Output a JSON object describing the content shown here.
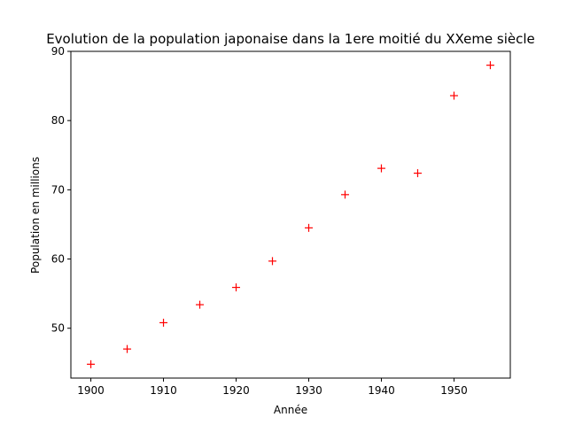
{
  "chart_data": {
    "type": "scatter",
    "title": "Evolution de la population japonaise dans la 1ere moitié du XXeme siècle",
    "xlabel": "Année",
    "ylabel": "Population en millions",
    "marker": "+",
    "marker_color": "#ff0000",
    "grid": false,
    "legend": false,
    "xlim": [
      1897.25,
      1957.75
    ],
    "ylim": [
      42.8,
      90
    ],
    "x_ticks": [
      1900,
      1910,
      1920,
      1930,
      1940,
      1950
    ],
    "y_ticks": [
      50,
      60,
      70,
      80,
      90
    ],
    "x": [
      1900,
      1905,
      1910,
      1915,
      1920,
      1925,
      1930,
      1935,
      1940,
      1945,
      1950,
      1955
    ],
    "y": [
      44.8,
      47.0,
      50.8,
      53.4,
      55.9,
      59.7,
      64.5,
      69.3,
      73.1,
      72.4,
      83.6,
      88.0
    ]
  }
}
